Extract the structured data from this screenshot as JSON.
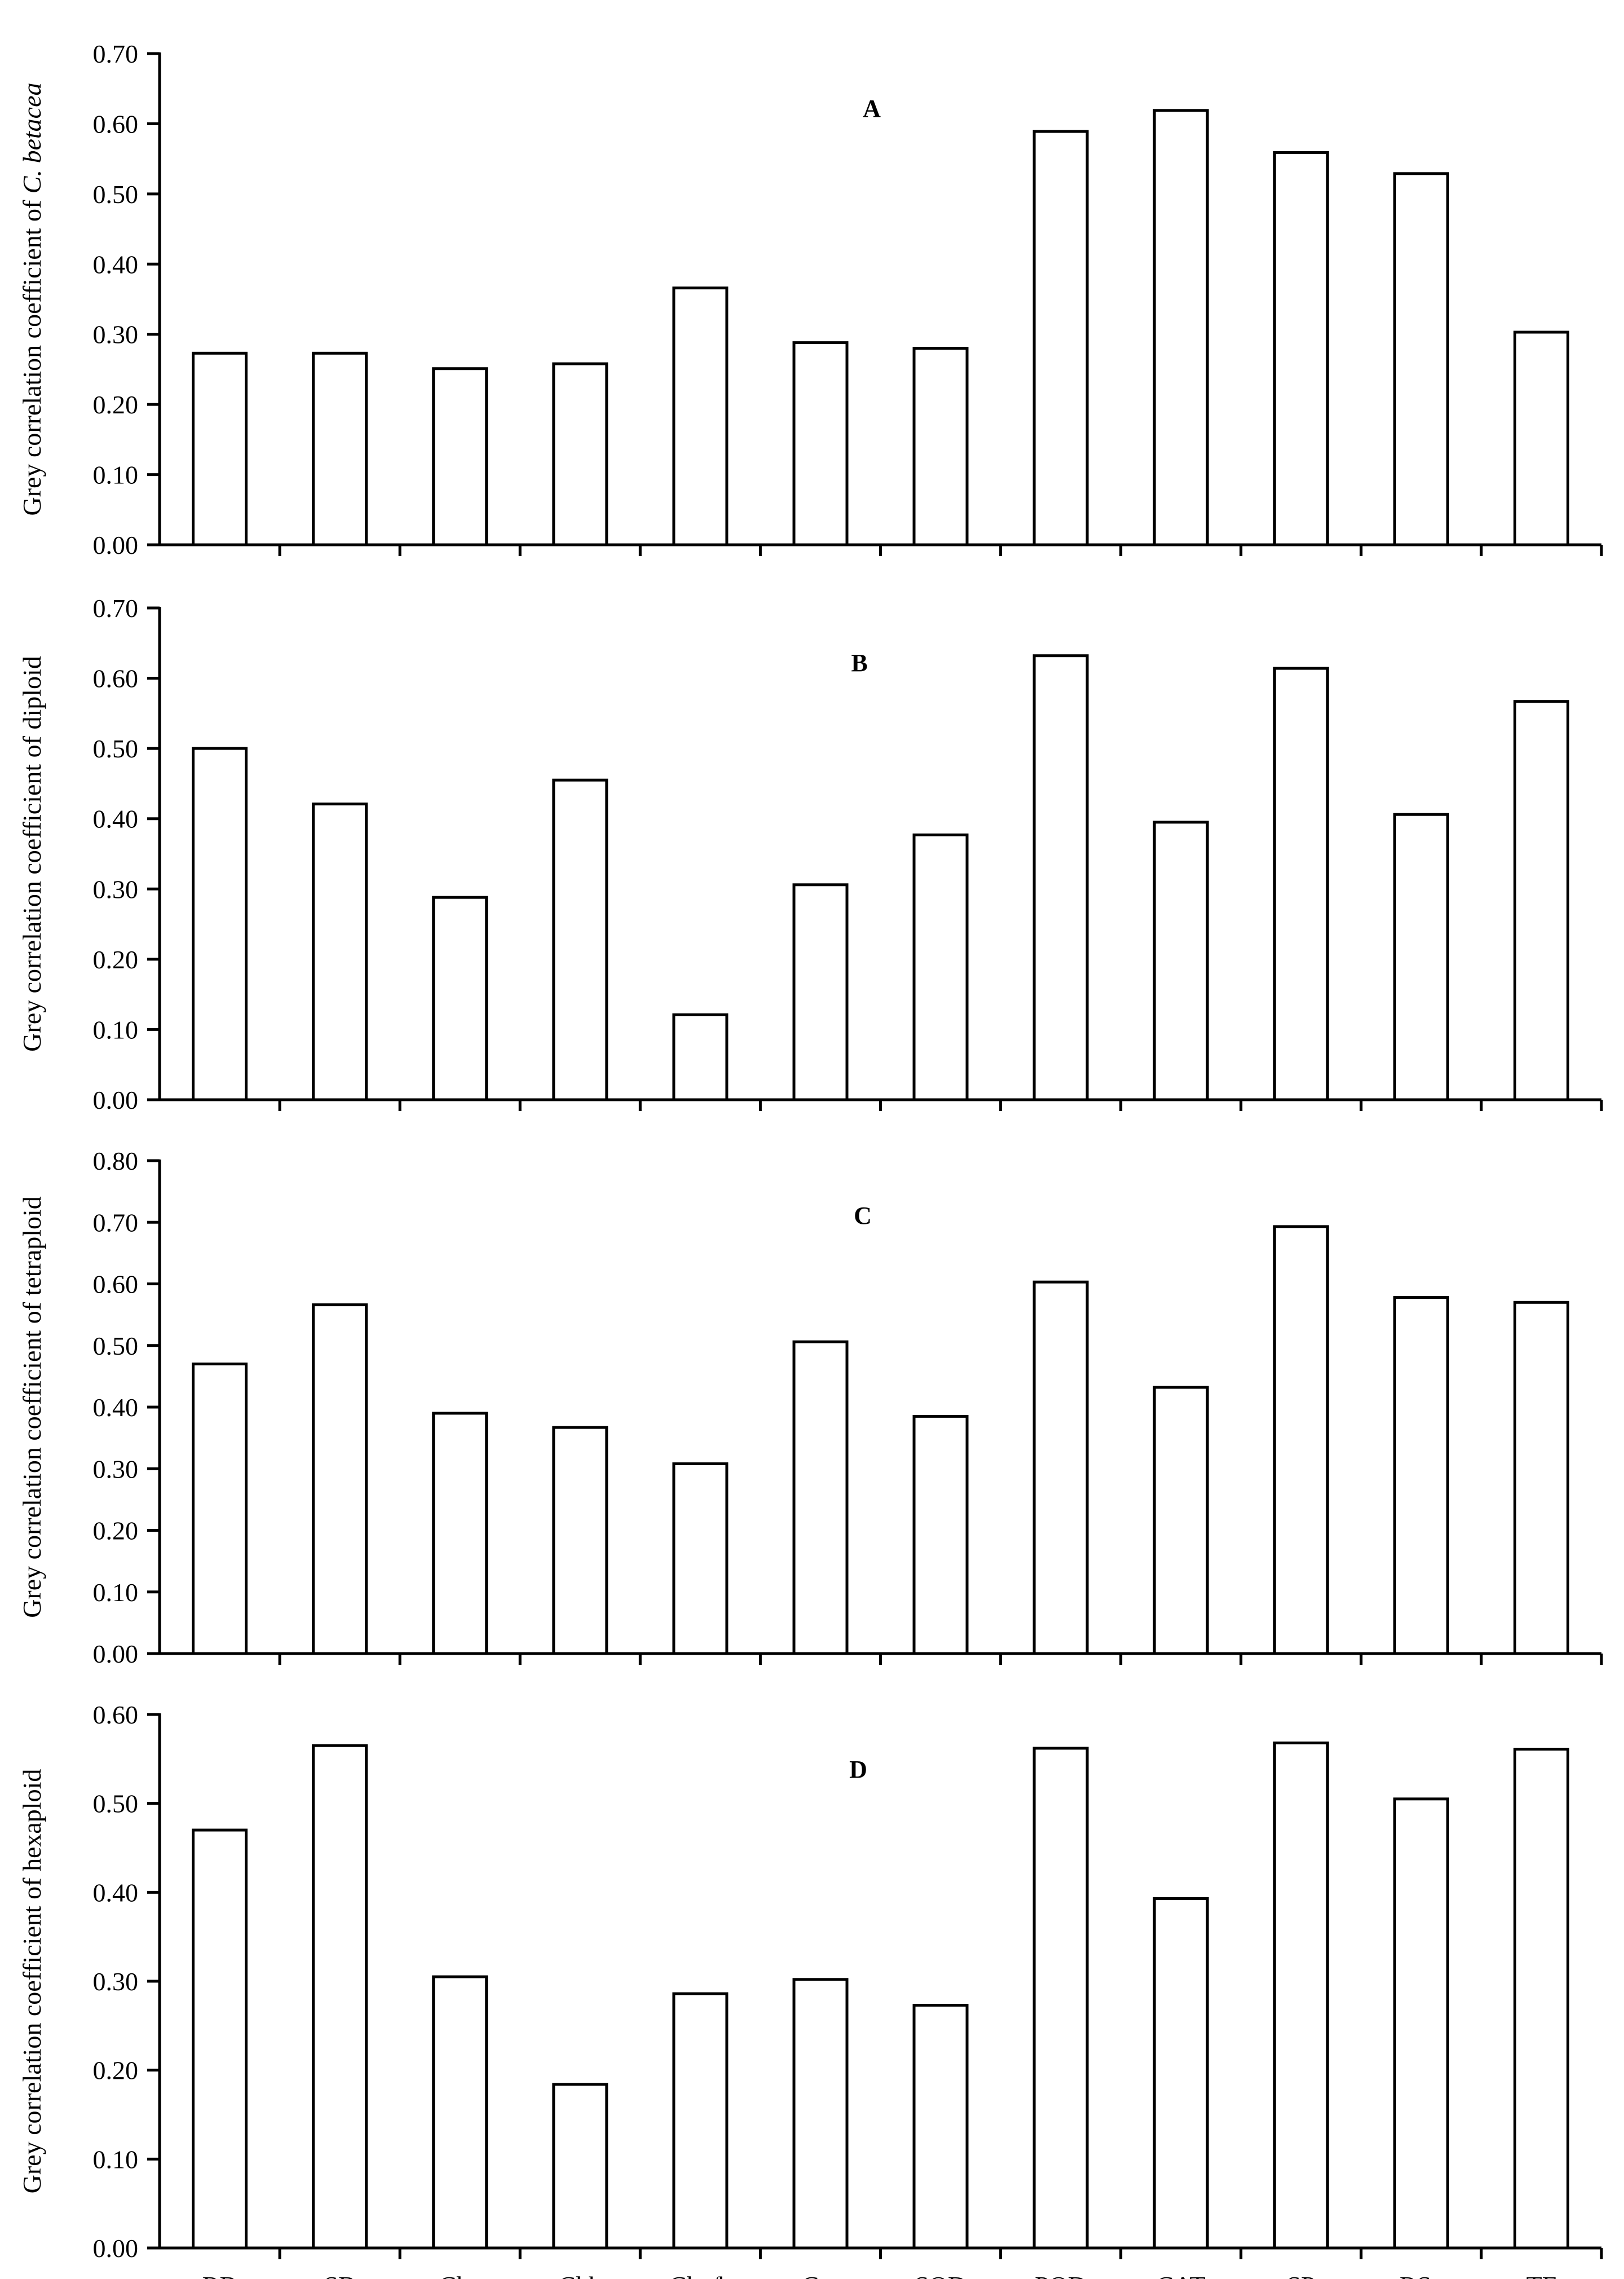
{
  "chart_data": [
    {
      "type": "bar",
      "title": "A",
      "ylabel": "Grey correlation coefficient of C. betacea",
      "ylabel_plain": "Grey correlation coefficient of ",
      "ylabel_italic": "C. betacea",
      "categories": [
        "RB",
        "SB",
        "Cha",
        "Chb",
        "Cha/b",
        "Car",
        "SOD",
        "POD",
        "CAT",
        "SP",
        "RSe",
        "TF"
      ],
      "values": [
        0.273,
        0.273,
        0.251,
        0.258,
        0.366,
        0.288,
        0.28,
        0.589,
        0.619,
        0.559,
        0.529,
        0.303
      ],
      "ylim": [
        0,
        0.7
      ],
      "yticks": [
        "0.00",
        "0.10",
        "0.20",
        "0.30",
        "0.40",
        "0.50",
        "0.60",
        "0.70"
      ],
      "show_xticklabels": false
    },
    {
      "type": "bar",
      "title": "B",
      "ylabel": "Grey correlation coefficient of diploid",
      "categories": [
        "RB",
        "SB",
        "Cha",
        "Chb",
        "Cha/b",
        "Car",
        "SOD",
        "POD",
        "CAT",
        "SP",
        "RSe",
        "TF"
      ],
      "values": [
        0.5,
        0.421,
        0.288,
        0.455,
        0.121,
        0.306,
        0.377,
        0.632,
        0.395,
        0.614,
        0.406,
        0.567
      ],
      "ylim": [
        0,
        0.7
      ],
      "yticks": [
        "0.00",
        "0.10",
        "0.20",
        "0.30",
        "0.40",
        "0.50",
        "0.60",
        "0.70"
      ],
      "show_xticklabels": false
    },
    {
      "type": "bar",
      "title": "C",
      "ylabel": "Grey correlation coefficient of tetraploid",
      "categories": [
        "RB",
        "SB",
        "Cha",
        "Chb",
        "Cha/b",
        "Car",
        "SOD",
        "POD",
        "CAT",
        "SP",
        "RSe",
        "TF"
      ],
      "values": [
        0.47,
        0.566,
        0.39,
        0.367,
        0.308,
        0.506,
        0.385,
        0.603,
        0.432,
        0.693,
        0.578,
        0.57
      ],
      "ylim": [
        0,
        0.8
      ],
      "yticks": [
        "0.00",
        "0.10",
        "0.20",
        "0.30",
        "0.40",
        "0.50",
        "0.60",
        "0.70",
        "0.80"
      ],
      "show_xticklabels": false
    },
    {
      "type": "bar",
      "title": "D",
      "ylabel": "Grey correlation coefficient of hexaploid",
      "categories": [
        "RB",
        "SB",
        "Cha",
        "Chb",
        "Cha/b",
        "Car",
        "SOD",
        "POD",
        "CAT",
        "SP",
        "RSe",
        "TF"
      ],
      "values": [
        0.47,
        0.565,
        0.305,
        0.184,
        0.286,
        0.302,
        0.273,
        0.562,
        0.393,
        0.568,
        0.505,
        0.561
      ],
      "ylim": [
        0,
        0.6
      ],
      "yticks": [
        "0.00",
        "0.10",
        "0.20",
        "0.30",
        "0.40",
        "0.50",
        "0.60"
      ],
      "show_xticklabels": true
    }
  ]
}
